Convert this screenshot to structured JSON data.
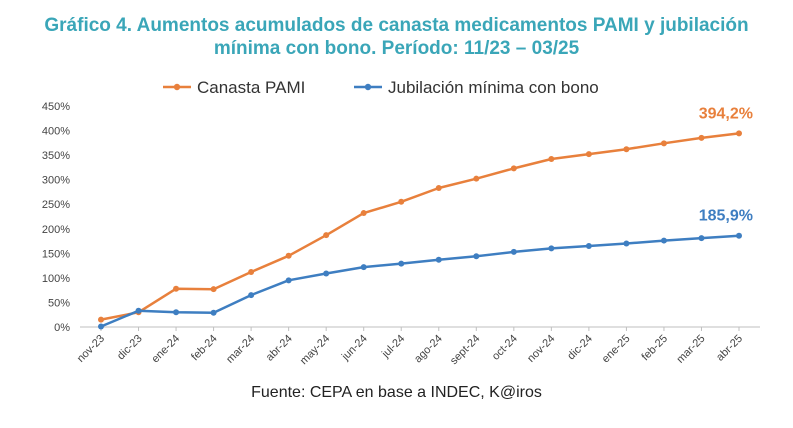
{
  "title_line1": "Gráfico 4. Aumentos acumulados de canasta medicamentos PAMI y jubilación",
  "title_line2": "mínima con bono. Período: 11/23 – 03/25",
  "source": "Fuente: CEPA en base a INDEC, K@iros",
  "chart_data": {
    "type": "line",
    "categories": [
      "nov-23",
      "dic-23",
      "ene-24",
      "feb-24",
      "mar-24",
      "abr-24",
      "may-24",
      "jun-24",
      "jul-24",
      "ago-24",
      "sept-24",
      "oct-24",
      "nov-24",
      "dic-24",
      "ene-25",
      "feb-25",
      "mar-25",
      "abr-25"
    ],
    "series": [
      {
        "name": "Canasta PAMI",
        "color": "#e8803c",
        "values": [
          15,
          30,
          78,
          77,
          112,
          145,
          187,
          232,
          255,
          283,
          302,
          323,
          342,
          352,
          362,
          374,
          385,
          394.2
        ],
        "end_label": "394,2%"
      },
      {
        "name": "Jubilación mínima con bono",
        "color": "#3e7ec1",
        "values": [
          1,
          33,
          30,
          29,
          65,
          95,
          109,
          122,
          129,
          137,
          144,
          153,
          160,
          165,
          170,
          176,
          181,
          185.9
        ],
        "end_label": "185,9%"
      }
    ],
    "y_ticks": [
      "0%",
      "50%",
      "100%",
      "150%",
      "200%",
      "250%",
      "300%",
      "350%",
      "400%",
      "450%"
    ],
    "ylim": [
      0,
      450
    ],
    "legend_position": "top",
    "grid": false
  }
}
